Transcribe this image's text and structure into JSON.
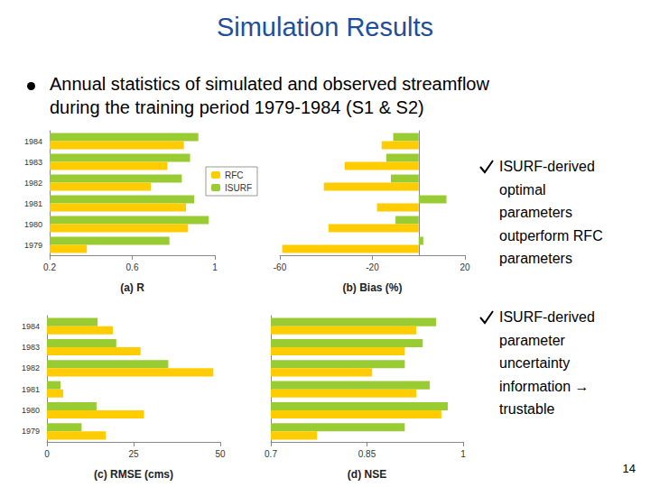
{
  "slide": {
    "title": "Simulation Results",
    "bullet": [
      "Annual statistics of simulated and observed streamflow",
      "during the training period 1979-1984 (S1 & S2)"
    ],
    "checks": [
      [
        "ISURF-derived",
        "optimal",
        "parameters",
        "outperform RFC",
        "parameters"
      ],
      [
        "ISURF-derived",
        "parameter",
        "uncertainty",
        "information →",
        "trustable"
      ]
    ],
    "page": "14"
  },
  "chart_data": [
    {
      "type": "bar",
      "orientation": "horizontal",
      "xlabel": "(a) R",
      "categories": [
        "1979",
        "1980",
        "1981",
        "1982",
        "1983",
        "1984"
      ],
      "series": [
        {
          "name": "RFC",
          "color": "#FFCC00",
          "values": [
            0.38,
            0.87,
            0.86,
            0.69,
            0.77,
            0.85
          ]
        },
        {
          "name": "ISURF",
          "color": "#99CC33",
          "values": [
            0.78,
            0.97,
            0.9,
            0.84,
            0.88,
            0.92
          ]
        }
      ],
      "xlim": [
        0.2,
        1
      ],
      "xticks": [
        0.2,
        0.6,
        1
      ],
      "grid": false,
      "legend": "right",
      "tick_labels": true
    },
    {
      "type": "bar",
      "orientation": "horizontal",
      "xlabel": "(b) Bias (%)",
      "categories": [
        "1979",
        "1980",
        "1981",
        "1982",
        "1983",
        "1984"
      ],
      "series": [
        {
          "name": "RFC",
          "color": "#FFCC00",
          "values": [
            -59,
            -39,
            -18,
            -41,
            -32,
            -16
          ]
        },
        {
          "name": "ISURF",
          "color": "#99CC33",
          "values": [
            2,
            -10,
            12,
            -12,
            -14,
            -11
          ]
        }
      ],
      "xlim": [
        -60,
        20
      ],
      "xticks": [
        -60,
        -20,
        20
      ],
      "grid": false,
      "tick_labels": "x"
    },
    {
      "type": "bar",
      "orientation": "horizontal",
      "xlabel": "(c) RMSE (cms)",
      "categories": [
        "1979",
        "1980",
        "1981",
        "1982",
        "1983",
        "1984"
      ],
      "series": [
        {
          "name": "RFC",
          "color": "#FFCC00",
          "values": [
            17,
            28,
            4.7,
            48,
            27,
            19
          ]
        },
        {
          "name": "ISURF",
          "color": "#99CC33",
          "values": [
            10,
            14.3,
            3.9,
            35,
            20,
            14.6
          ]
        }
      ],
      "xlim": [
        0,
        50
      ],
      "xticks": [
        0,
        25,
        50
      ],
      "grid": false,
      "tick_labels": true
    },
    {
      "type": "bar",
      "orientation": "horizontal",
      "xlabel": "(d) NSE",
      "categories": [
        "1979",
        "1980",
        "1981",
        "1982",
        "1983",
        "1984"
      ],
      "series": [
        {
          "name": "RFC",
          "color": "#FFCC00",
          "values": [
            0.772,
            0.966,
            0.927,
            0.858,
            0.909,
            0.927
          ]
        },
        {
          "name": "ISURF",
          "color": "#99CC33",
          "values": [
            0.909,
            0.976,
            0.948,
            0.909,
            0.937,
            0.958
          ]
        }
      ],
      "xlim": [
        0.7,
        1
      ],
      "xticks": [
        0.7,
        0.85,
        1
      ],
      "grid": false,
      "tick_labels": "x"
    }
  ]
}
